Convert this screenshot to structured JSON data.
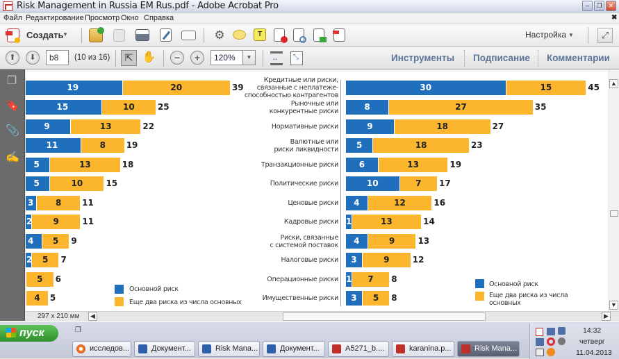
{
  "window": {
    "title": "Risk Management in Russia EM Rus.pdf - Adobe Acrobat Pro",
    "minimize_icon": "minimize-icon",
    "restore_icon": "restore-icon",
    "close_icon": "close-icon"
  },
  "menu": {
    "items": [
      "Файл",
      "Редактирование",
      "Просмотр",
      "Окно",
      "Справка"
    ],
    "close_doc": "✖"
  },
  "toolbar": {
    "create_label": "Создать",
    "settings_label": "Настройка",
    "icons": [
      "create-pdf-icon",
      "open-icon",
      "save-icon",
      "print-icon",
      "edit-icon",
      "email-icon",
      "gear-icon",
      "comment-icon",
      "highlight-icon",
      "delete-page-icon",
      "rotate-page-icon",
      "export-icon",
      "sign-icon",
      "fullscreen-icon"
    ]
  },
  "nav": {
    "page_input": "b8",
    "page_count": "(10 из 16)",
    "zoom_value": "120%",
    "tools_label": "Инструменты",
    "sign_label": "Подписание",
    "comments_label": "Комментарии"
  },
  "sidebar": {
    "icons": [
      "pages-icon",
      "bookmark-icon",
      "attachment-icon",
      "signature-icon"
    ]
  },
  "statusbar": {
    "page_size": "297 x 210 мм"
  },
  "chart_data": [
    {
      "type": "bar",
      "orientation": "horizontal-stacked",
      "title": "",
      "categories": [
        "Кредитные или риски, связанные с неплатежеспособностью контрагентов",
        "Рыночные или конкурентные риски",
        "Нормативные риски",
        "Валютные или риски ликвидности",
        "Транзакционные риски",
        "Политические риски",
        "Ценовые риски",
        "Кадровые риски",
        "Риски, связанные с системой поставок",
        "Налоговые риски",
        "Операционные риски",
        "Имущественные риски"
      ],
      "series": [
        {
          "name": "Основной риск",
          "color": "#1f6fbd",
          "values": [
            19,
            15,
            9,
            11,
            5,
            5,
            3,
            2,
            4,
            2,
            1,
            1
          ]
        },
        {
          "name": "Еще два  риска из числа основных",
          "color": "#fbb62e",
          "values": [
            20,
            10,
            13,
            8,
            13,
            10,
            8,
            9,
            5,
            5,
            5,
            4
          ]
        }
      ],
      "totals": [
        39,
        25,
        22,
        19,
        18,
        15,
        11,
        11,
        9,
        7,
        6,
        5
      ],
      "blue_labels_shown": [
        "19",
        "15",
        "9",
        "11",
        "5",
        "5",
        "3",
        "2",
        "4",
        "2",
        "",
        ""
      ],
      "legend": [
        "Основной риск",
        "Еще два  риска из числа основных"
      ],
      "legend_position": "bottom-right",
      "note": "left chart horizontally scrolled, left edge cut off"
    },
    {
      "type": "bar",
      "orientation": "horizontal-stacked",
      "title": "",
      "categories": [
        "Кредитные или риски, связанные с неплатежеспособностью контрагентов",
        "Рыночные или конкурентные риски",
        "Нормативные риски",
        "Валютные или риски ликвидности",
        "Транзакционные риски",
        "Политические риски",
        "Ценовые риски",
        "Кадровые риски",
        "Риски, связанные с системой поставок",
        "Налоговые риски",
        "Операционные риски",
        "Имущественные риски"
      ],
      "series": [
        {
          "name": "Основной риск",
          "color": "#1f6fbd",
          "values": [
            30,
            8,
            9,
            5,
            6,
            10,
            4,
            1,
            4,
            3,
            1,
            3
          ]
        },
        {
          "name": "Еще два  риска из числа основных",
          "color": "#fbb62e",
          "values": [
            15,
            27,
            18,
            18,
            13,
            7,
            12,
            13,
            9,
            9,
            7,
            5
          ]
        }
      ],
      "totals": [
        45,
        35,
        27,
        23,
        19,
        17,
        16,
        14,
        13,
        12,
        8,
        8
      ],
      "legend": [
        "Основной риск",
        "Еще два  риска из числа основных"
      ],
      "legend_position": "bottom-right"
    }
  ],
  "category_labels": [
    [
      "Кредитные или риски,",
      "связанные с неплатеже-",
      "способностью контрагентов"
    ],
    [
      "Рыночные или",
      "конкурентные риски"
    ],
    [
      "Нормативные риски"
    ],
    [
      "Валютные или",
      "риски ликвидности"
    ],
    [
      "Транзакционные риски"
    ],
    [
      "Политические риски"
    ],
    [
      "Ценовые риски"
    ],
    [
      "Кадровые риски"
    ],
    [
      "Риски, связанные",
      "с системой поставок"
    ],
    [
      "Налоговые риски"
    ],
    [
      "Операционные риски"
    ],
    [
      "Имущественные риски"
    ]
  ],
  "legend_left": [
    "Основной риск",
    "Еще два  риска из числа основных"
  ],
  "legend_right": [
    "Основной риск",
    "Еще два  риска из числа",
    "основных"
  ],
  "taskbar": {
    "start_label": "пуск",
    "tasks": [
      {
        "label": "исследов...",
        "icon": "browser-icon"
      },
      {
        "label": "Документ...",
        "icon": "word-icon"
      },
      {
        "label": "Risk Mana...",
        "icon": "word-icon"
      },
      {
        "label": "Документ...",
        "icon": "word-icon"
      },
      {
        "label": "A5271_b....",
        "icon": "pdf-icon"
      },
      {
        "label": "karanina.p...",
        "icon": "pdf-icon"
      },
      {
        "label": "Risk Mana...",
        "icon": "pdf-icon",
        "active": true
      }
    ],
    "clock_time": "14:32",
    "clock_day": "четверг",
    "clock_date": "11.04.2013"
  }
}
